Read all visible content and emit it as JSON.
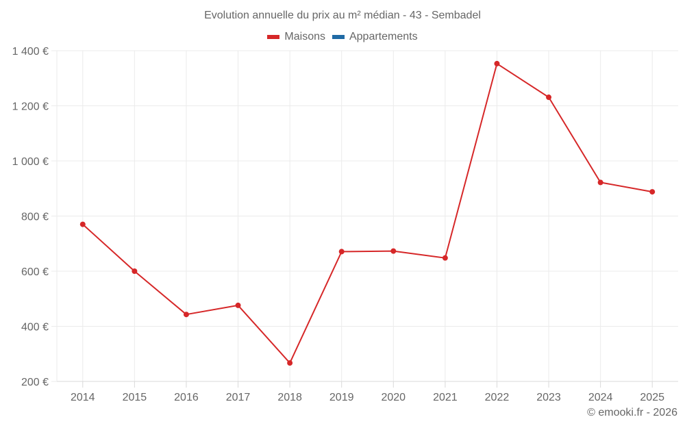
{
  "header": {
    "title": "Evolution annuelle du prix au m² médian - 43 - Sembadel"
  },
  "legend": [
    {
      "label": "Maisons",
      "color": "#d62728"
    },
    {
      "label": "Appartements",
      "color": "#1f6aa5"
    }
  ],
  "credit": "© emooki.fr - 2026",
  "chart_data": {
    "type": "line",
    "title": "Evolution annuelle du prix au m² médian - 43 - Sembadel",
    "xlabel": "",
    "ylabel": "",
    "categories": [
      "2014",
      "2015",
      "2016",
      "2017",
      "2018",
      "2019",
      "2020",
      "2021",
      "2022",
      "2023",
      "2024",
      "2025"
    ],
    "series": [
      {
        "name": "Maisons",
        "color": "#d62728",
        "values": [
          770,
          600,
          443,
          476,
          267,
          671,
          673,
          648,
          1353,
          1231,
          922,
          888
        ]
      },
      {
        "name": "Appartements",
        "color": "#1f6aa5",
        "values": []
      }
    ],
    "ylim": [
      200,
      1400
    ],
    "yticks": [
      200,
      400,
      600,
      800,
      1000,
      1200,
      1400
    ],
    "ytick_labels": [
      "200 €",
      "400 €",
      "600 €",
      "800 €",
      "1 000 €",
      "1 200 €",
      "1 400 €"
    ],
    "grid": true,
    "legend_position": "top"
  }
}
